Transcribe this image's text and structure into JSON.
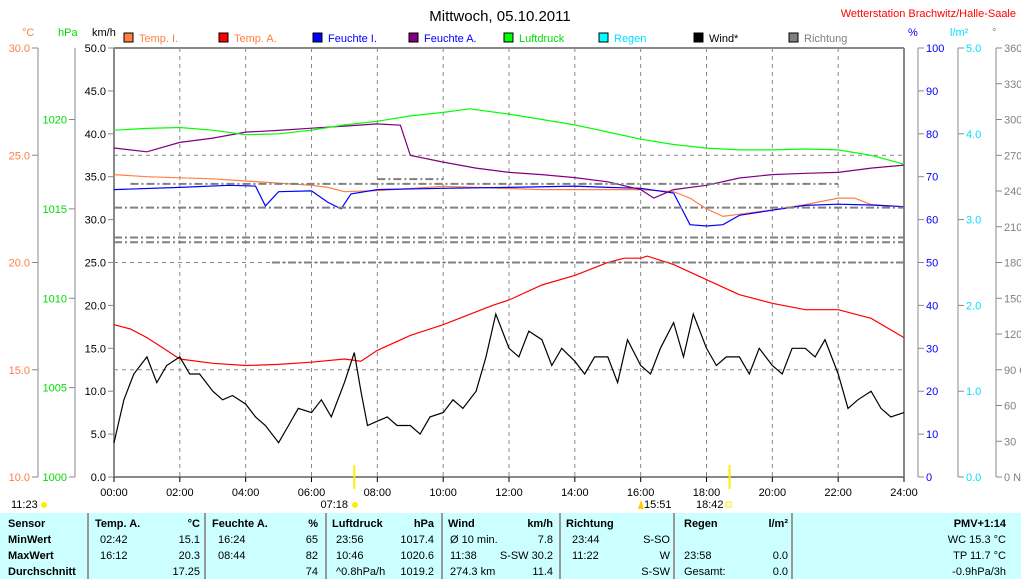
{
  "title": "Mittwoch, 05.10.2011",
  "station": "Wetterstation Brachwitz/Halle-Saale",
  "legend": [
    {
      "label": "Temp. I.",
      "color": "#ff8040",
      "text_color": "#ff8040"
    },
    {
      "label": "Temp. A.",
      "color": "#ff0000",
      "text_color": "#ff8040"
    },
    {
      "label": "Feuchte I.",
      "color": "#0000ff",
      "text_color": "#0000ff"
    },
    {
      "label": "Feuchte A.",
      "color": "#800080",
      "text_color": "#0000ff"
    },
    {
      "label": "Luftdruck",
      "color": "#00ff00",
      "text_color": "#00dd00"
    },
    {
      "label": "Regen",
      "color": "#00ffff",
      "text_color": "#00e0ff"
    },
    {
      "label": "Wind*",
      "color": "#000000",
      "text_color": "#000000"
    },
    {
      "label": "Richtung",
      "color": "#808080",
      "text_color": "#808080"
    }
  ],
  "chart_data": {
    "type": "line",
    "title": "Mittwoch, 05.10.2011",
    "x_ticks": [
      "00:00",
      "02:00",
      "04:00",
      "06:00",
      "08:00",
      "10:00",
      "12:00",
      "14:00",
      "16:00",
      "18:00",
      "20:00",
      "22:00",
      "24:00"
    ],
    "axes": {
      "temp": {
        "unit": "°C",
        "range": [
          10,
          30
        ],
        "ticks": [
          "30.0",
          "25.0",
          "20.0",
          "15.0",
          "10.0"
        ]
      },
      "pressure": {
        "unit": "hPa",
        "range": [
          1000,
          1024
        ],
        "ticks": [
          "1020",
          "1015",
          "1010",
          "1005",
          "1000"
        ]
      },
      "wind": {
        "unit": "km/h",
        "range": [
          0,
          50
        ],
        "ticks": [
          "50.0",
          "45.0",
          "40.0",
          "35.0",
          "30.0",
          "25.0",
          "20.0",
          "15.0",
          "10.0",
          "5.0",
          "0.0"
        ]
      },
      "humidity": {
        "unit": "%",
        "range": [
          0,
          100
        ],
        "ticks": [
          "100",
          "90",
          "80",
          "70",
          "60",
          "50",
          "40",
          "30",
          "20",
          "10",
          "0"
        ]
      },
      "rain": {
        "unit": "l/m²",
        "range": [
          0,
          5
        ],
        "ticks": [
          "5.0",
          "4.0",
          "3.0",
          "2.0",
          "1.0",
          "0.0"
        ]
      },
      "direction": {
        "unit": "°",
        "range": [
          0,
          360
        ],
        "ticks": [
          "360 N",
          "330",
          "300",
          "270 W",
          "240",
          "210",
          "180 S",
          "150",
          "120",
          "90 O",
          "60",
          "30",
          "0 N"
        ]
      }
    },
    "series": [
      {
        "name": "Temp. I.",
        "axis": "temp",
        "color": "#ff8040",
        "x": [
          0,
          1,
          2,
          3,
          4,
          5,
          6,
          6.5,
          7,
          8,
          9,
          10,
          11,
          12,
          13,
          14,
          15,
          16,
          17,
          17.5,
          18,
          18.5,
          19,
          20,
          21,
          22,
          22.5,
          23,
          24
        ],
        "y": [
          24.1,
          24.0,
          23.95,
          23.9,
          23.8,
          23.7,
          23.6,
          23.5,
          23.3,
          23.35,
          23.45,
          23.55,
          23.5,
          23.45,
          23.4,
          23.4,
          23.4,
          23.4,
          23.3,
          23.0,
          22.5,
          22.15,
          22.25,
          22.45,
          22.7,
          23.0,
          23.0,
          22.7,
          22.6
        ]
      },
      {
        "name": "Temp. A.",
        "axis": "temp",
        "color": "#ff0000",
        "x": [
          0,
          0.5,
          1,
          1.5,
          2,
          3,
          4,
          5,
          6,
          7,
          7.5,
          8,
          9,
          10,
          11,
          11.5,
          12,
          13,
          14,
          15,
          15.5,
          16,
          16.2,
          17,
          18,
          19,
          20,
          21,
          22,
          23,
          24
        ],
        "y": [
          17.1,
          16.9,
          16.5,
          16.0,
          15.5,
          15.3,
          15.2,
          15.25,
          15.35,
          15.5,
          15.4,
          15.9,
          16.6,
          17.1,
          17.7,
          18.0,
          18.25,
          18.95,
          19.4,
          20.0,
          20.2,
          20.2,
          20.3,
          19.9,
          19.2,
          18.5,
          18.1,
          17.8,
          17.8,
          17.4,
          16.5
        ]
      },
      {
        "name": "Feuchte I.",
        "axis": "humidity",
        "color": "#0000ff",
        "x": [
          0,
          2,
          3.5,
          4.3,
          4.6,
          5,
          6,
          6.5,
          6.9,
          7.2,
          8,
          10,
          12,
          14,
          15,
          16,
          17,
          17.5,
          18,
          18.5,
          19,
          20,
          21,
          22,
          23,
          24
        ],
        "y": [
          67.0,
          67.5,
          68.0,
          67.8,
          63.2,
          66.5,
          66.7,
          64.0,
          62.5,
          66.0,
          67.0,
          67.3,
          67.5,
          67.8,
          67.5,
          67.3,
          66.2,
          58.8,
          58.5,
          58.8,
          61.0,
          62.2,
          63.3,
          63.6,
          63.4,
          63.0
        ]
      },
      {
        "name": "Feuchte A.",
        "axis": "humidity",
        "color": "#800080",
        "x": [
          0,
          1,
          2,
          3,
          4,
          5,
          6,
          7,
          8,
          8.7,
          9,
          10,
          11,
          12,
          13,
          14,
          15,
          16,
          16.4,
          17,
          18,
          19,
          20,
          21,
          22,
          23,
          24
        ],
        "y": [
          76.7,
          75.8,
          78,
          79,
          80.4,
          80.8,
          81.3,
          81.8,
          82.3,
          82,
          75,
          73.4,
          72,
          71,
          70.5,
          69.8,
          68.8,
          67,
          65,
          67,
          68,
          69.7,
          70.5,
          70.8,
          71,
          72,
          72.7
        ]
      },
      {
        "name": "Luftdruck",
        "axis": "pressure",
        "color": "#00ff00",
        "x": [
          0,
          1,
          2,
          3,
          4,
          5,
          6,
          7,
          8,
          9,
          10,
          10.8,
          12,
          13,
          14,
          15,
          16,
          17,
          18,
          19,
          20,
          21,
          22,
          23,
          24
        ],
        "y": [
          1019.4,
          1019.5,
          1019.55,
          1019.4,
          1019.15,
          1019.2,
          1019.4,
          1019.7,
          1019.9,
          1020.2,
          1020.4,
          1020.6,
          1020.3,
          1020.0,
          1019.7,
          1019.3,
          1018.9,
          1018.6,
          1018.4,
          1018.3,
          1018.3,
          1018.35,
          1018.3,
          1018.0,
          1017.5
        ]
      },
      {
        "name": "Wind*",
        "axis": "wind",
        "color": "#000000",
        "x": [
          0,
          0.3,
          0.6,
          1,
          1.3,
          1.6,
          2,
          2.3,
          2.6,
          3,
          3.3,
          3.6,
          4,
          4.3,
          4.6,
          5,
          5.3,
          5.6,
          6,
          6.3,
          6.6,
          7,
          7.3,
          7.5,
          7.7,
          8,
          8.3,
          8.6,
          9,
          9.3,
          9.6,
          10,
          10.3,
          10.6,
          11,
          11.3,
          11.6,
          12,
          12.3,
          12.6,
          13,
          13.3,
          13.6,
          14,
          14.3,
          14.6,
          15,
          15.3,
          15.6,
          16,
          16.3,
          16.6,
          17,
          17.3,
          17.6,
          18,
          18.3,
          18.6,
          19,
          19.3,
          19.6,
          20,
          20.3,
          20.6,
          21,
          21.3,
          21.6,
          22,
          22.3,
          22.6,
          23,
          23.3,
          23.6,
          24
        ],
        "y": [
          4,
          9,
          12,
          14,
          11,
          13,
          14,
          12,
          12,
          10,
          9,
          9.5,
          8.5,
          7,
          6,
          4,
          6,
          8,
          7.5,
          9,
          7,
          11,
          14.5,
          10,
          6,
          6.5,
          7,
          6,
          6,
          5,
          7,
          7.5,
          9,
          8,
          10,
          14,
          19,
          15,
          14,
          17,
          16,
          13,
          15,
          13.5,
          12,
          14,
          14,
          11,
          16,
          13,
          12,
          15,
          18,
          14,
          19,
          15,
          13,
          14,
          14,
          12,
          15,
          13,
          12,
          15,
          15,
          14,
          16,
          12,
          8,
          9,
          10,
          8,
          7,
          7.5
        ]
      },
      {
        "name": "Richtung",
        "axis": "direction",
        "color": "#808080",
        "style": "dashed",
        "bands": [
          {
            "deg": 226,
            "from": 0,
            "to": 24
          },
          {
            "deg": 201,
            "from": 0,
            "to": 24
          },
          {
            "deg": 197,
            "from": 0,
            "to": 24
          },
          {
            "deg": 246,
            "from": 0.5,
            "to": 22
          },
          {
            "deg": 180,
            "from": 4.8,
            "to": 24
          },
          {
            "deg": 250,
            "from": 8,
            "to": 10
          }
        ]
      },
      {
        "name": "Regen",
        "axis": "rain",
        "color": "#00ffff",
        "x": [
          0,
          24
        ],
        "y": [
          0,
          0
        ]
      }
    ],
    "events": {
      "moon": "11:23",
      "sunrise": "07:18",
      "noon": "15:51",
      "sunset": "18:42"
    }
  },
  "table": {
    "headers": [
      "Sensor",
      "Temp. A.",
      "°C",
      "Feuchte A.",
      "%",
      "Luftdruck",
      "hPa",
      "Wind",
      "km/h",
      "Richtung",
      "Regen",
      "l/m²",
      "PMV+1:14"
    ],
    "rows": [
      {
        "label": "MinWert",
        "temp_t": "02:42",
        "temp_v": "15.1",
        "hum_t": "16:24",
        "hum_v": "65",
        "pres_t": "23:56",
        "pres_v": "1017.4",
        "wind_t": "Ø 10 min.",
        "wind_v": "7.8",
        "dir_t": "23:44",
        "dir_v": "S-SO",
        "rain_t": "",
        "rain_v": "",
        "extra": "WC 15.3 °C"
      },
      {
        "label": "MaxWert",
        "temp_t": "16:12",
        "temp_v": "20.3",
        "hum_t": "08:44",
        "hum_v": "82",
        "pres_t": "10:46",
        "pres_v": "1020.6",
        "wind_t": "11:38",
        "wind_v": "S-SW 30.2",
        "dir_t": "11:22",
        "dir_v": "W",
        "rain_t": "23:58",
        "rain_v": "0.0",
        "extra": "TP 11.7 °C"
      },
      {
        "label": "Durchschnitt",
        "temp_t": "",
        "temp_v": "17.25",
        "hum_t": "",
        "hum_v": "74",
        "pres_t": "^0.8hPa/h",
        "pres_v": "1019.2",
        "wind_t": "274.3 km",
        "wind_v": "11.4",
        "dir_t": "",
        "dir_v": "S-SW",
        "rain_t": "Gesamt:",
        "rain_v": "0.0",
        "extra": "-0.9hPa/3h"
      }
    ]
  }
}
